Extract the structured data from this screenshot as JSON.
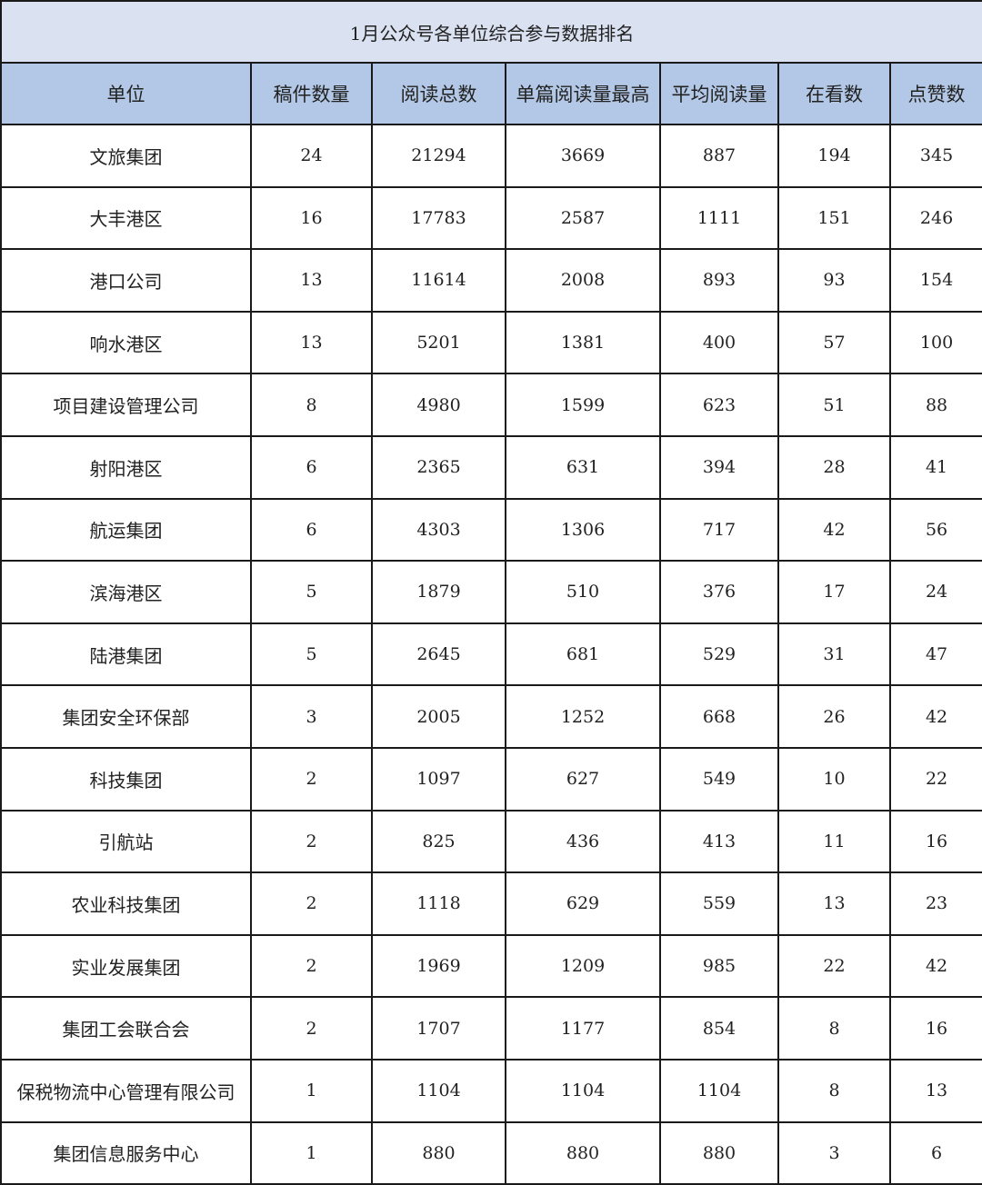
{
  "chart_data": {
    "type": "table",
    "title": "1月公众号各单位综合参与数据排名",
    "columns": [
      "单位",
      "稿件数量",
      "阅读总数",
      "单篇阅读量最高",
      "平均阅读量",
      "在看数",
      "点赞数"
    ],
    "rows": [
      [
        "文旅集团",
        24,
        21294,
        3669,
        887,
        194,
        345
      ],
      [
        "大丰港区",
        16,
        17783,
        2587,
        1111,
        151,
        246
      ],
      [
        "港口公司",
        13,
        11614,
        2008,
        893,
        93,
        154
      ],
      [
        "响水港区",
        13,
        5201,
        1381,
        400,
        57,
        100
      ],
      [
        "项目建设管理公司",
        8,
        4980,
        1599,
        623,
        51,
        88
      ],
      [
        "射阳港区",
        6,
        2365,
        631,
        394,
        28,
        41
      ],
      [
        "航运集团",
        6,
        4303,
        1306,
        717,
        42,
        56
      ],
      [
        "滨海港区",
        5,
        1879,
        510,
        376,
        17,
        24
      ],
      [
        "陆港集团",
        5,
        2645,
        681,
        529,
        31,
        47
      ],
      [
        "集团安全环保部",
        3,
        2005,
        1252,
        668,
        26,
        42
      ],
      [
        "科技集团",
        2,
        1097,
        627,
        549,
        10,
        22
      ],
      [
        "引航站",
        2,
        825,
        436,
        413,
        11,
        16
      ],
      [
        "农业科技集团",
        2,
        1118,
        629,
        559,
        13,
        23
      ],
      [
        "实业发展集团",
        2,
        1969,
        1209,
        985,
        22,
        42
      ],
      [
        "集团工会联合会",
        2,
        1707,
        1177,
        854,
        8,
        16
      ],
      [
        "保税物流中心管理有限公司",
        1,
        1104,
        1104,
        1104,
        8,
        13
      ],
      [
        "集团信息服务中心",
        1,
        880,
        880,
        880,
        3,
        6
      ]
    ],
    "colors": {
      "title_bg": "#dae1f1",
      "header_bg": "#b3c8e6",
      "border": "#1a1a1a"
    }
  }
}
